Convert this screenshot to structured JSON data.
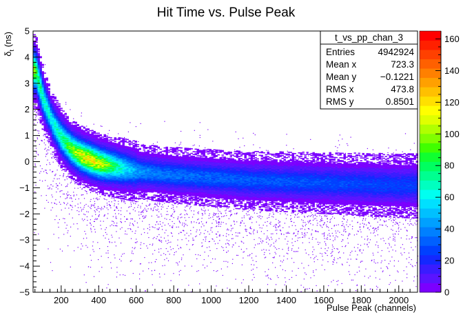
{
  "chart_data": {
    "type": "heatmap",
    "title": "Hit Time vs. Pulse Peak",
    "xlabel": "Pulse Peak (channels)",
    "ylabel_main": "δ",
    "ylabel_sub": "t",
    "ylabel_unit": " (ns)",
    "xlim": [
      50,
      2100
    ],
    "ylim": [
      -5,
      5
    ],
    "x_ticks": [
      "200",
      "400",
      "600",
      "800",
      "1000",
      "1200",
      "1400",
      "1600",
      "1800",
      "2000"
    ],
    "x_tick_values": [
      200,
      400,
      600,
      800,
      1000,
      1200,
      1400,
      1600,
      1800,
      2000
    ],
    "y_ticks": [
      "−5",
      "−4",
      "−3",
      "−2",
      "−1",
      "0",
      "1",
      "2",
      "3",
      "4",
      "5"
    ],
    "y_tick_values": [
      -5,
      -4,
      -3,
      -2,
      -1,
      0,
      1,
      2,
      3,
      4,
      5
    ],
    "colorbar": {
      "range": [
        0,
        165
      ],
      "ticks": [
        "0",
        "20",
        "40",
        "60",
        "80",
        "100",
        "120",
        "140",
        "160"
      ],
      "tick_values": [
        0,
        20,
        40,
        60,
        80,
        100,
        120,
        140,
        160
      ],
      "palette": [
        "#7b00ff",
        "#5a14ff",
        "#3a1cff",
        "#1428ff",
        "#0040ff",
        "#0060ff",
        "#0080ff",
        "#00a0ff",
        "#00c0ff",
        "#00e0ff",
        "#00fff0",
        "#00ffc0",
        "#00ff90",
        "#00ff60",
        "#10ff30",
        "#40ff00",
        "#80ff00",
        "#b0ff00",
        "#e0ff00",
        "#ffff00",
        "#ffe000",
        "#ffc000",
        "#ffa000",
        "#ff8000",
        "#ff6000",
        "#ff4000",
        "#ff2000",
        "#ff0000"
      ]
    },
    "band": {
      "description_keys": "center of the dense band in data units",
      "center_x": [
        60,
        100,
        150,
        200,
        250,
        300,
        400,
        500,
        600,
        800,
        1000,
        1200,
        1400,
        1600,
        1800,
        2000,
        2090
      ],
      "center_y": [
        3.5,
        2.4,
        1.5,
        0.9,
        0.5,
        0.25,
        -0.05,
        -0.2,
        -0.35,
        -0.5,
        -0.6,
        -0.7,
        -0.75,
        -0.8,
        -0.85,
        -0.9,
        -0.9
      ],
      "peak_x": 350,
      "peak_y": 0.1
    }
  },
  "stats_box": {
    "title": "t_vs_pp_chan_3",
    "rows": [
      {
        "label": "Entries",
        "value": "4942924"
      },
      {
        "label": "Mean x",
        "value": "723.3"
      },
      {
        "label": "Mean y",
        "value": "−0.1221"
      },
      {
        "label": "RMS x",
        "value": "473.8"
      },
      {
        "label": "RMS y",
        "value": "0.8501"
      }
    ]
  }
}
